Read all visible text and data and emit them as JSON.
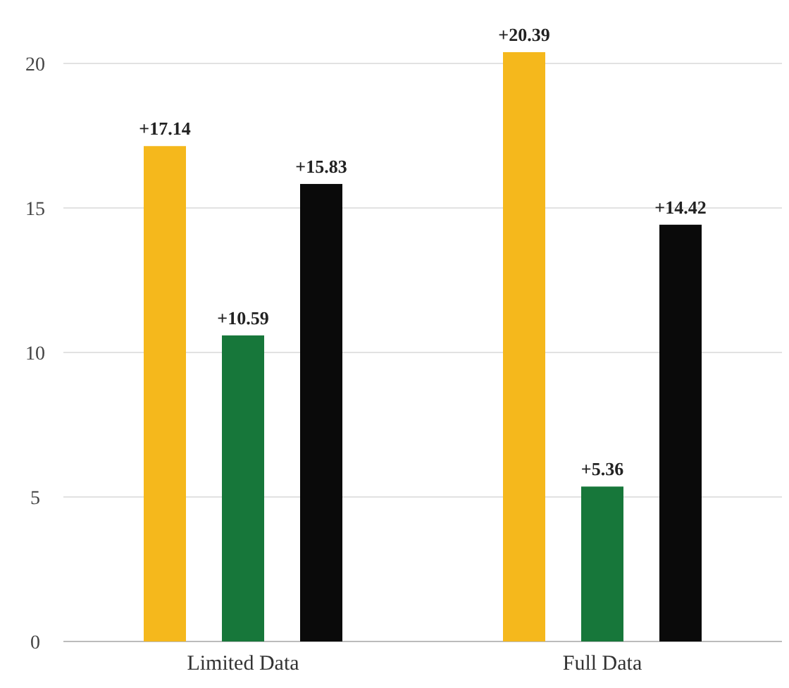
{
  "chart_data": {
    "type": "bar",
    "categories": [
      "Limited Data",
      "Full Data"
    ],
    "series": [
      {
        "color": "#f5b81c",
        "values": [
          17.14,
          20.39
        ],
        "value_labels": [
          "+17.14",
          "+20.39"
        ]
      },
      {
        "color": "#17773a",
        "values": [
          10.59,
          5.36
        ],
        "value_labels": [
          "+10.59",
          "+5.36"
        ]
      },
      {
        "color": "#0a0a0a",
        "values": [
          15.83,
          14.42
        ],
        "value_labels": [
          "+15.83",
          "+14.42"
        ]
      }
    ],
    "ylim": [
      0,
      20.39
    ],
    "yticks": [
      0,
      5,
      10,
      15,
      20
    ],
    "grid": "y"
  }
}
